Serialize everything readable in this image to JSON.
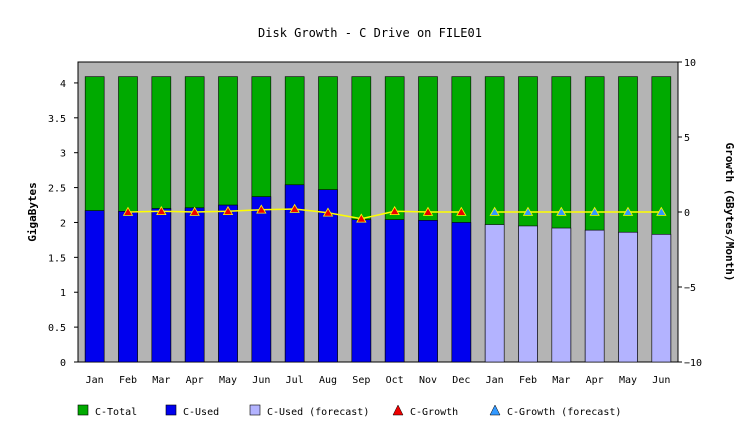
{
  "chart_data": {
    "type": "bar",
    "title": "Disk Growth - C Drive on FILE01",
    "ylabel": "GigaBytes",
    "y2label": "Growth (GBytes/Month)",
    "xlabel": "",
    "ylim": [
      0,
      4.3
    ],
    "y2lim": [
      -10,
      10
    ],
    "yticks": [
      "0",
      "0.5",
      "1",
      "1.5",
      "2",
      "2.5",
      "3",
      "3.5",
      "4"
    ],
    "y2ticks": [
      "-10",
      "-5",
      "0",
      "5",
      "10"
    ],
    "categories": [
      "Jan",
      "Feb",
      "Mar",
      "Apr",
      "May",
      "Jun",
      "Jul",
      "Aug",
      "Sep",
      "Oct",
      "Nov",
      "Dec",
      "Jan",
      "Feb",
      "Mar",
      "Apr",
      "May",
      "Jun"
    ],
    "legend_position": "bottom",
    "series": [
      {
        "name": "C-Total",
        "kind": "bar",
        "color": "#00aa00",
        "values": [
          4.09,
          4.09,
          4.09,
          4.09,
          4.09,
          4.09,
          4.09,
          4.09,
          4.09,
          4.09,
          4.09,
          4.09,
          4.09,
          4.09,
          4.09,
          4.09,
          4.09,
          4.09
        ]
      },
      {
        "name": "C-Used",
        "kind": "bar",
        "color": "#0000ee",
        "values": [
          2.17,
          2.16,
          2.2,
          2.21,
          2.25,
          2.37,
          2.54,
          2.47,
          2.04,
          2.04,
          2.03,
          2.0,
          null,
          null,
          null,
          null,
          null,
          null
        ]
      },
      {
        "name": "C-Used (forecast)",
        "kind": "bar",
        "color": "#b3b3ff",
        "values": [
          null,
          null,
          null,
          null,
          null,
          null,
          null,
          null,
          null,
          null,
          null,
          null,
          1.97,
          1.95,
          1.92,
          1.89,
          1.86,
          1.83
        ]
      },
      {
        "name": "C-Growth",
        "kind": "line",
        "axis": "right",
        "color": "#ee0000",
        "values": [
          null,
          0.0,
          0.05,
          0.0,
          0.05,
          0.15,
          0.2,
          -0.05,
          -0.45,
          0.05,
          0.0,
          0.0,
          null,
          null,
          null,
          null,
          null,
          null
        ]
      },
      {
        "name": "C-Growth (forecast)",
        "kind": "line",
        "axis": "right",
        "color": "#3399ff",
        "values": [
          null,
          null,
          null,
          null,
          null,
          null,
          null,
          null,
          null,
          null,
          null,
          null,
          0.0,
          0.0,
          0.0,
          0.0,
          0.0,
          0.0
        ]
      }
    ],
    "colors": {
      "plot_background": "#b4b4b4",
      "growth_line": "#ffff00",
      "marker_edge": "#ffff00"
    }
  }
}
